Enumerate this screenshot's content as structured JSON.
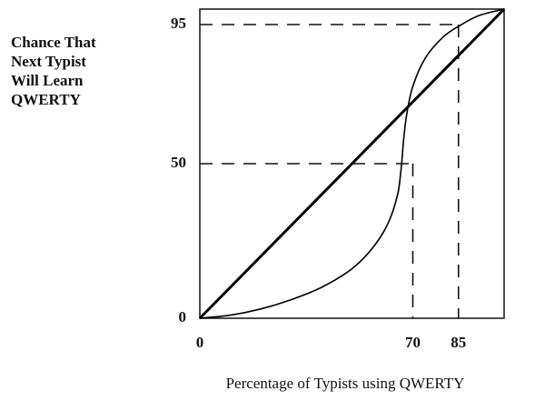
{
  "chart_data": {
    "type": "line",
    "ylabel": [
      "Chance That",
      "Next Typist",
      "Will Learn",
      "QWERTY"
    ],
    "xlabel": "Percentage of Typists using QWERTY",
    "xlim": [
      0,
      100
    ],
    "ylim": [
      0,
      100
    ],
    "xticks": [
      0,
      70,
      85
    ],
    "yticks": [
      0,
      50,
      95
    ],
    "series": [
      {
        "color": "#000000",
        "x": [
          0,
          100
        ],
        "values": [
          0,
          100
        ]
      },
      {
        "color": "#000000",
        "x": [
          0,
          10,
          20,
          30,
          40,
          50,
          57,
          62,
          65,
          66,
          66.5,
          67,
          68,
          70,
          74,
          80,
          86,
          92,
          100
        ],
        "values": [
          0,
          1,
          3,
          6,
          10,
          16,
          23,
          31,
          40,
          47,
          52,
          58,
          66,
          75,
          84,
          91,
          95,
          98,
          100
        ]
      }
    ]
  }
}
